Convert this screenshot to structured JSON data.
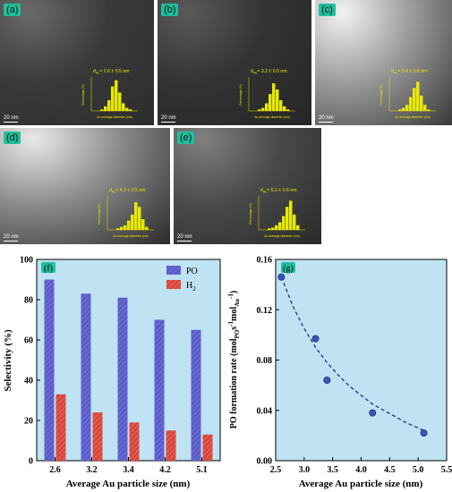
{
  "tem_panels": [
    {
      "label": "(a)",
      "scale": "20 nm",
      "d_label": "d",
      "d_sub": "Au",
      "d_value": "= 2.6 ± 0.5 nm",
      "hist_ylabel": "Percentage (%)",
      "hist_xlabel": "Au average diameter (nm)",
      "hist_values": [
        2,
        6,
        14,
        32,
        40,
        24,
        10,
        4,
        2
      ]
    },
    {
      "label": "(b)",
      "scale": "20 nm",
      "d_label": "d",
      "d_sub": "Au",
      "d_value": "= 3.2 ± 0.5 nm",
      "hist_ylabel": "Percentage (%)",
      "hist_xlabel": "Au average diameter (nm)",
      "hist_values": [
        2,
        4,
        10,
        22,
        36,
        28,
        14,
        6,
        2
      ]
    },
    {
      "label": "(c)",
      "scale": "20 nm",
      "d_label": "d",
      "d_sub": "Au",
      "d_value": "= 3.4 ± 0.6 nm",
      "hist_ylabel": "Percentage (%)",
      "hist_xlabel": "Au average diameter (nm)",
      "hist_values": [
        2,
        4,
        8,
        18,
        30,
        38,
        20,
        8,
        2
      ]
    },
    {
      "label": "(d)",
      "scale": "20 nm",
      "d_label": "d",
      "d_sub": "Au",
      "d_value": "= 4.2 ± 0.5 nm",
      "hist_ylabel": "Percentage (%)",
      "hist_xlabel": "Au average diameter (nm)",
      "hist_values": [
        2,
        4,
        6,
        12,
        20,
        36,
        30,
        14,
        4
      ]
    },
    {
      "label": "(e)",
      "scale": "20 nm",
      "d_label": "d",
      "d_sub": "Au",
      "d_value": "= 5.1 ± 0.6 nm",
      "hist_ylabel": "Percentage (%)",
      "hist_xlabel": "Au average diameter (nm)",
      "hist_values": [
        2,
        3,
        6,
        10,
        18,
        30,
        38,
        20,
        6
      ]
    }
  ],
  "colors": {
    "bar_po": "#5b5bc8",
    "bar_h2": "#d9453a",
    "plot_bg": "#bfe3f2",
    "fit_line": "#2a3a9a",
    "point": "#3a56b8",
    "panel_tag": "#1fbf9c",
    "hist": "#e8e800"
  },
  "chart_data": [
    {
      "type": "bar",
      "panel_label": "(f)",
      "categories": [
        "2.6",
        "3.2",
        "3.4",
        "4.2",
        "5.1"
      ],
      "series": [
        {
          "name": "PO",
          "values": [
            90,
            83,
            81,
            70,
            65
          ]
        },
        {
          "name": "H",
          "name_sub": "2",
          "values": [
            33,
            24,
            19,
            15,
            13
          ]
        }
      ],
      "xlabel": "Average Au particle size (nm)",
      "ylabel": "Selectivity (%)",
      "ylim": [
        0,
        100
      ],
      "yticks": [
        "0",
        "20",
        "40",
        "60",
        "80",
        "100"
      ],
      "legend": "top-right"
    },
    {
      "type": "scatter",
      "panel_label": "(g)",
      "x": [
        2.6,
        3.2,
        3.4,
        4.2,
        5.1
      ],
      "y": [
        0.146,
        0.097,
        0.064,
        0.038,
        0.022
      ],
      "fit_x": [
        2.6,
        2.8,
        3.0,
        3.2,
        3.4,
        3.6,
        3.8,
        4.0,
        4.2,
        4.4,
        4.6,
        4.8,
        5.0,
        5.1
      ],
      "fit_y": [
        0.146,
        0.123,
        0.105,
        0.09,
        0.078,
        0.068,
        0.059,
        0.052,
        0.045,
        0.04,
        0.035,
        0.03,
        0.026,
        0.024
      ],
      "xlabel": "Average Au particle size (nm)",
      "ylabel_parts": {
        "a": "PO formation rate (mol",
        "b": "PO",
        "c": "s",
        "d": "-1",
        "e": "mol",
        "f": "Au",
        "g": "-1",
        "h": ")"
      },
      "xlim": [
        2.5,
        5.5
      ],
      "ylim": [
        0,
        0.16
      ],
      "xticks": [
        "2.5",
        "3.0",
        "3.5",
        "4.0",
        "4.5",
        "5.0",
        "5.5"
      ],
      "yticks": [
        "0.00",
        "0.04",
        "0.08",
        "0.12",
        "0.16"
      ]
    }
  ]
}
